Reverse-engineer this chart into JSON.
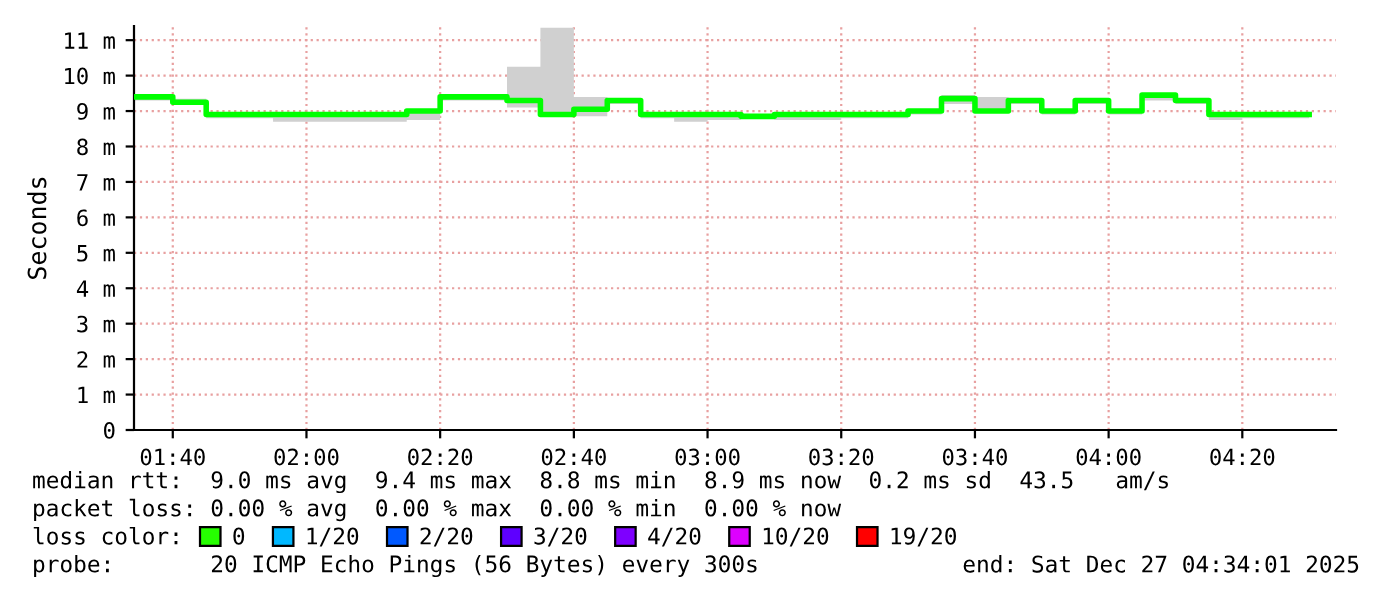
{
  "chart_data": {
    "type": "step",
    "ylabel": "Seconds",
    "xlim": [
      1.57,
      4.5669
    ],
    "ylim": [
      0,
      11.4
    ],
    "xticks": [
      {
        "value": 1.6667,
        "label": "01:40"
      },
      {
        "value": 2,
        "label": "02:00"
      },
      {
        "value": 2.3333,
        "label": "02:20"
      },
      {
        "value": 2.6667,
        "label": "02:40"
      },
      {
        "value": 3,
        "label": "03:00"
      },
      {
        "value": 3.3333,
        "label": "03:20"
      },
      {
        "value": 3.6667,
        "label": "03:40"
      },
      {
        "value": 4,
        "label": "04:00"
      },
      {
        "value": 4.3333,
        "label": "04:20"
      }
    ],
    "yticks": [
      0,
      {
        "value": 1,
        "label": "1 m"
      },
      {
        "value": 2,
        "label": "2 m"
      },
      {
        "value": 3,
        "label": "3 m"
      },
      {
        "value": 4,
        "label": "4 m"
      },
      {
        "value": 5,
        "label": "5 m"
      },
      {
        "value": 6,
        "label": "6 m"
      },
      {
        "value": 7,
        "label": "7 m"
      },
      {
        "value": 8,
        "label": "8 m"
      },
      {
        "value": 9,
        "label": "9 m"
      },
      {
        "value": 10,
        "label": "10 m"
      },
      {
        "value": 11,
        "label": "11 m"
      }
    ],
    "grid": true,
    "legend": "bottom",
    "legend_title": "loss color:",
    "series": [
      {
        "color": "#00ff00",
        "x": [
          1.57,
          1.6667,
          1.75,
          1.8333,
          1.9167,
          2,
          2.0833,
          2.1667,
          2.25,
          2.3333,
          2.4167,
          2.5,
          2.5833,
          2.6667,
          2.75,
          2.8333,
          2.9167,
          3,
          3.0833,
          3.1667,
          3.25,
          3.3333,
          3.4167,
          3.5,
          3.5833,
          3.6667,
          3.75,
          3.8333,
          3.9167,
          4,
          4.0833,
          4.1667,
          4.25,
          4.3333,
          4.4167,
          4.5
        ],
        "values": [
          9.4,
          9.25,
          8.9,
          8.9,
          8.9,
          8.9,
          8.9,
          8.9,
          9.0,
          9.4,
          9.4,
          9.3,
          8.9,
          9.05,
          9.3,
          8.9,
          8.9,
          8.9,
          8.85,
          8.9,
          8.9,
          8.9,
          8.9,
          9.0,
          9.35,
          9.0,
          9.3,
          9.0,
          9.3,
          9.0,
          9.45,
          9.3,
          8.9,
          8.9,
          8.9,
          8.9
        ],
        "lower": [
          9.3,
          9.2,
          8.8,
          8.8,
          8.7,
          8.7,
          8.7,
          8.7,
          8.75,
          9.3,
          9.3,
          9.1,
          8.85,
          8.85,
          9.2,
          8.8,
          8.7,
          8.75,
          8.8,
          8.75,
          8.75,
          8.8,
          8.8,
          8.9,
          9.2,
          8.95,
          9.2,
          8.9,
          9.2,
          8.9,
          9.3,
          9.2,
          8.75,
          8.8,
          8.8,
          8.8
        ],
        "upper": [
          9.45,
          9.35,
          8.9,
          8.9,
          8.9,
          8.9,
          8.9,
          8.9,
          9.0,
          9.4,
          9.4,
          10.25,
          11.35,
          9.4,
          9.3,
          8.9,
          8.9,
          8.9,
          8.9,
          8.9,
          8.9,
          8.9,
          8.9,
          9.05,
          9.45,
          9.4,
          9.3,
          9.0,
          9.3,
          9.0,
          9.45,
          9.3,
          8.9,
          8.9,
          8.9,
          8.9
        ]
      },
      {
        "name": "0",
        "color": "#26ff00"
      },
      {
        "name": "1/20",
        "color": "#00b8ff"
      },
      {
        "name": "2/20",
        "color": "#0059ff"
      },
      {
        "name": "3/20",
        "color": "#5e00ff"
      },
      {
        "name": "4/20",
        "color": "#7e00ff"
      },
      {
        "name": "10/20",
        "color": "#dd00ff"
      },
      {
        "name": "19/20",
        "color": "#ff0000"
      }
    ],
    "annotations": [
      "median rtt:  9.0 ms avg  9.4 ms max  8.8 ms min  8.9 ms now  0.2 ms sd  43.5   am/s",
      "packet loss: 0.00 % avg  0.00 % max  0.00 % min  0.00 % now",
      "probe:       20 ICMP Echo Pings (56 Bytes) every 300s",
      "end: Sat Dec 27 04:34:01 2025"
    ]
  }
}
